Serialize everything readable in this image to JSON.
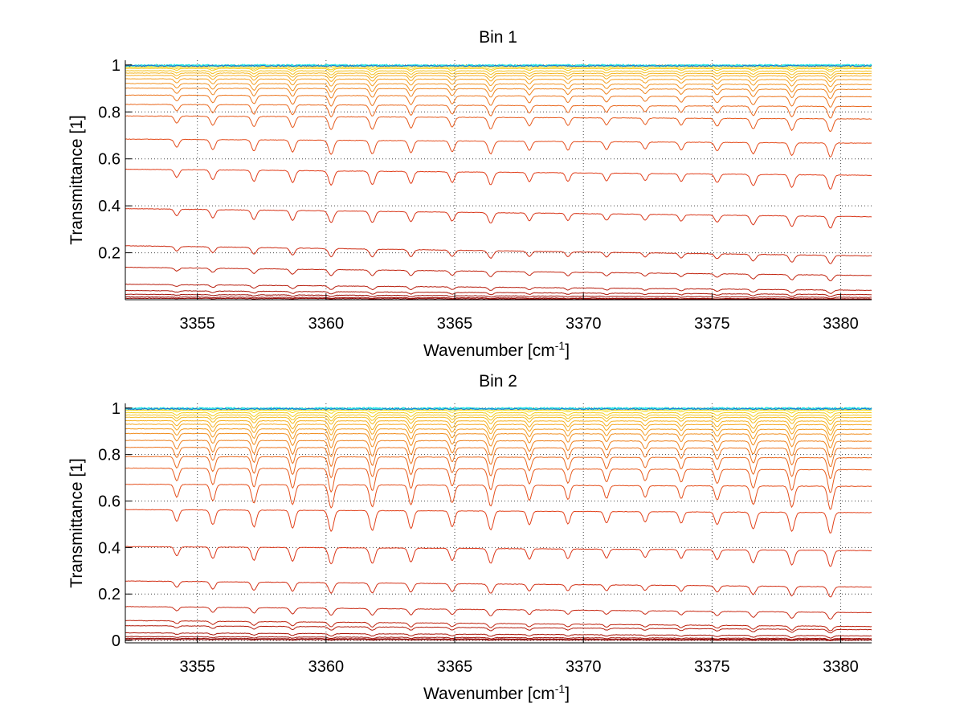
{
  "chart_data": [
    {
      "type": "line",
      "title": "Bin 1",
      "xlabel": "Wavenumber [cm",
      "xlabel_sup": "-1",
      "xlabel_end": "]",
      "ylabel": "Transmittance [1]",
      "xlim": [
        3352.2,
        3381.2
      ],
      "ylim": [
        0.0,
        1.02
      ],
      "xticks": [
        3355,
        3360,
        3365,
        3370,
        3375,
        3380
      ],
      "yticks": [
        0.2,
        0.4,
        0.6,
        0.8,
        1
      ],
      "grid": true,
      "line_dips": [
        {
          "x": 3354.2,
          "w": 0.12,
          "d": 0.55
        },
        {
          "x": 3355.6,
          "w": 0.13,
          "d": 0.7
        },
        {
          "x": 3357.2,
          "w": 0.13,
          "d": 0.8
        },
        {
          "x": 3358.7,
          "w": 0.13,
          "d": 0.85
        },
        {
          "x": 3360.2,
          "w": 0.14,
          "d": 1.0
        },
        {
          "x": 3361.8,
          "w": 0.14,
          "d": 0.95
        },
        {
          "x": 3363.3,
          "w": 0.13,
          "d": 0.85
        },
        {
          "x": 3364.9,
          "w": 0.13,
          "d": 0.75
        },
        {
          "x": 3366.4,
          "w": 0.14,
          "d": 0.9
        },
        {
          "x": 3367.9,
          "w": 0.12,
          "d": 0.65
        },
        {
          "x": 3369.4,
          "w": 0.12,
          "d": 0.6
        },
        {
          "x": 3370.9,
          "w": 0.12,
          "d": 0.55
        },
        {
          "x": 3372.4,
          "w": 0.12,
          "d": 0.5
        },
        {
          "x": 3373.8,
          "w": 0.12,
          "d": 0.55
        },
        {
          "x": 3375.2,
          "w": 0.13,
          "d": 0.6
        },
        {
          "x": 3376.6,
          "w": 0.14,
          "d": 0.8
        },
        {
          "x": 3378.1,
          "w": 0.14,
          "d": 0.9
        },
        {
          "x": 3379.6,
          "w": 0.14,
          "d": 1.0
        }
      ],
      "series_levels": [
        0.005,
        0.01,
        0.02,
        0.035,
        0.06,
        0.13,
        0.22,
        0.38,
        0.55,
        0.68,
        0.78,
        0.83,
        0.87,
        0.9,
        0.92,
        0.94,
        0.955,
        0.965,
        0.975,
        0.985,
        0.99,
        0.995,
        0.998
      ],
      "series_depth": [
        0.002,
        0.004,
        0.006,
        0.01,
        0.015,
        0.025,
        0.035,
        0.05,
        0.06,
        0.06,
        0.055,
        0.05,
        0.045,
        0.04,
        0.035,
        0.03,
        0.025,
        0.02,
        0.017,
        0.013,
        0.01,
        0.006,
        0.003
      ],
      "series_slope": [
        0.0005,
        0.001,
        0.0015,
        0.002,
        0.003,
        0.004,
        0.005,
        0.004,
        0.003,
        0.002,
        0.0015,
        0.001,
        0.0008,
        0.0006,
        0.0005,
        0.0004,
        0.0003,
        0.0002,
        0.0002,
        0.0001,
        0.0001,
        0.0,
        0.0
      ]
    },
    {
      "type": "line",
      "title": "Bin 2",
      "xlabel": "Wavenumber [cm",
      "xlabel_sup": "-1",
      "xlabel_end": "]",
      "ylabel": "Transmittance [1]",
      "xlim": [
        3352.2,
        3381.2
      ],
      "ylim": [
        -0.01,
        1.02
      ],
      "xticks": [
        3355,
        3360,
        3365,
        3370,
        3375,
        3380
      ],
      "yticks": [
        0,
        0.2,
        0.4,
        0.6,
        0.8,
        1
      ],
      "grid": true,
      "line_dips": [
        {
          "x": 3354.2,
          "w": 0.12,
          "d": 0.55
        },
        {
          "x": 3355.6,
          "w": 0.13,
          "d": 0.7
        },
        {
          "x": 3357.2,
          "w": 0.13,
          "d": 0.8
        },
        {
          "x": 3358.7,
          "w": 0.13,
          "d": 0.85
        },
        {
          "x": 3360.2,
          "w": 0.14,
          "d": 1.0
        },
        {
          "x": 3361.8,
          "w": 0.14,
          "d": 0.95
        },
        {
          "x": 3363.3,
          "w": 0.13,
          "d": 0.85
        },
        {
          "x": 3364.9,
          "w": 0.13,
          "d": 0.75
        },
        {
          "x": 3366.4,
          "w": 0.14,
          "d": 0.9
        },
        {
          "x": 3367.9,
          "w": 0.12,
          "d": 0.65
        },
        {
          "x": 3369.4,
          "w": 0.12,
          "d": 0.6
        },
        {
          "x": 3370.9,
          "w": 0.12,
          "d": 0.55
        },
        {
          "x": 3372.4,
          "w": 0.12,
          "d": 0.5
        },
        {
          "x": 3373.8,
          "w": 0.12,
          "d": 0.55
        },
        {
          "x": 3375.2,
          "w": 0.13,
          "d": 0.6
        },
        {
          "x": 3376.6,
          "w": 0.14,
          "d": 0.8
        },
        {
          "x": 3378.1,
          "w": 0.14,
          "d": 0.9
        },
        {
          "x": 3379.6,
          "w": 0.14,
          "d": 1.0
        }
      ],
      "series_levels": [
        0.004,
        0.008,
        0.015,
        0.03,
        0.06,
        0.08,
        0.14,
        0.25,
        0.4,
        0.56,
        0.67,
        0.74,
        0.79,
        0.83,
        0.86,
        0.89,
        0.91,
        0.93,
        0.945,
        0.96,
        0.97,
        0.98,
        0.99,
        0.995,
        0.998
      ],
      "series_depth": [
        0.002,
        0.004,
        0.006,
        0.01,
        0.015,
        0.02,
        0.03,
        0.045,
        0.07,
        0.09,
        0.1,
        0.1,
        0.09,
        0.08,
        0.07,
        0.06,
        0.05,
        0.045,
        0.04,
        0.03,
        0.025,
        0.02,
        0.012,
        0.006,
        0.003
      ],
      "series_slope": [
        0.0003,
        0.0006,
        0.001,
        0.0015,
        0.002,
        0.003,
        0.003,
        0.003,
        0.002,
        0.0015,
        0.001,
        0.0008,
        0.0006,
        0.0005,
        0.0004,
        0.0003,
        0.0003,
        0.0002,
        0.0002,
        0.0001,
        0.0001,
        0.0,
        0.0,
        0.0,
        0.0
      ]
    }
  ],
  "colors": {
    "bottom_series": "#8b0000",
    "mid_series": "#e03a1a",
    "upper_series": "#f5a623",
    "top_series": "#f2ea1a",
    "noise_series": "#1f6fd1",
    "cyan_series": "#2ee6e6"
  }
}
